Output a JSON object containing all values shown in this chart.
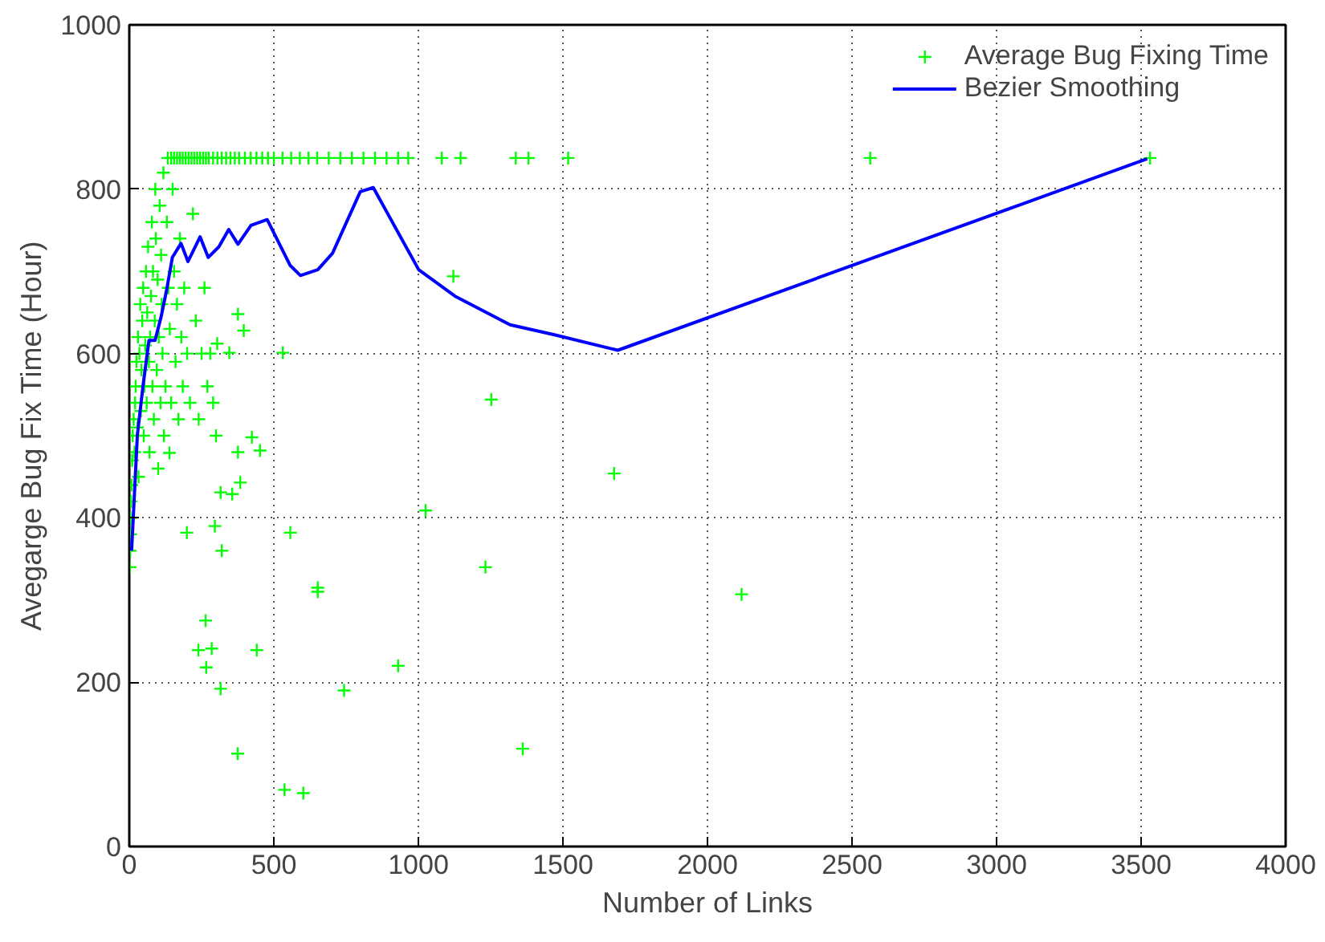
{
  "chart_data": {
    "type": "scatter",
    "xlabel": "Number of Links",
    "ylabel": "Avegarge Bug Fix Time (Hour)",
    "xlim": [
      0,
      4000
    ],
    "ylim": [
      0,
      1000
    ],
    "xticks": [
      0,
      500,
      1000,
      1500,
      2000,
      2500,
      3000,
      3500,
      4000
    ],
    "yticks": [
      0,
      200,
      400,
      600,
      800,
      1000
    ],
    "grid": true,
    "legend": "top right",
    "series": [
      {
        "name": "Average Bug Fixing Time",
        "marker": "cross",
        "color": "#00ff00",
        "x": [
          2,
          3,
          5,
          4,
          6,
          8,
          10,
          12,
          15,
          18,
          20,
          22,
          25,
          28,
          30,
          32,
          35,
          38,
          40,
          42,
          45,
          48,
          50,
          52,
          55,
          58,
          60,
          62,
          65,
          68,
          70,
          72,
          75,
          78,
          80,
          82,
          85,
          88,
          90,
          92,
          95,
          98,
          100,
          102,
          105,
          108,
          110,
          112,
          115,
          118,
          120,
          125,
          130,
          135,
          140,
          145,
          150,
          155,
          160,
          165,
          170,
          175,
          180,
          185,
          190,
          200,
          210,
          220,
          230,
          240,
          250,
          260,
          270,
          280,
          290,
          300,
          199,
          296,
          320,
          557,
          652,
          652,
          1025,
          1232,
          264,
          239,
          285,
          441,
          266,
          316,
          930,
          743,
          375,
          1361,
          537,
          602,
          1677,
          2118,
          1121,
          1252,
          531,
          376,
          396,
          304,
          346,
          424,
          452,
          376,
          384,
          316,
          356,
          139,
          133,
          145,
          155,
          165,
          175,
          185,
          195,
          205,
          215,
          225,
          235,
          245,
          255,
          265,
          275,
          290,
          305,
          320,
          335,
          350,
          365,
          380,
          400,
          420,
          440,
          460,
          480,
          500,
          530,
          560,
          590,
          620,
          650,
          690,
          730,
          770,
          810,
          850,
          890,
          930,
          965,
          1081,
          1146,
          1337,
          1381,
          1518,
          2563,
          3531
        ],
        "values": [
          340,
          360,
          380,
          400,
          420,
          440,
          470,
          500,
          520,
          480,
          540,
          560,
          590,
          510,
          620,
          450,
          600,
          660,
          530,
          580,
          640,
          680,
          500,
          560,
          610,
          700,
          540,
          650,
          730,
          590,
          480,
          620,
          670,
          760,
          560,
          700,
          520,
          640,
          800,
          740,
          580,
          690,
          460,
          620,
          780,
          540,
          720,
          660,
          600,
          820,
          500,
          560,
          760,
          680,
          630,
          540,
          800,
          700,
          590,
          660,
          520,
          740,
          620,
          560,
          680,
          600,
          540,
          770,
          640,
          520,
          600,
          680,
          560,
          600,
          540,
          500,
          382,
          390,
          360,
          382,
          315,
          310,
          409,
          340,
          275,
          239,
          241,
          239,
          218,
          192,
          220,
          190,
          113,
          119,
          69,
          65,
          454,
          307,
          694,
          544,
          601,
          648,
          628,
          612,
          601,
          498,
          482,
          480,
          443,
          431,
          429,
          479,
          838,
          838,
          838,
          838,
          838,
          838,
          838,
          838,
          838,
          838,
          838,
          838,
          838,
          838,
          838,
          838,
          838,
          838,
          838,
          838,
          838,
          838,
          838,
          838,
          838,
          838,
          838,
          838,
          838,
          838,
          838,
          838,
          838,
          838,
          838,
          838,
          838,
          838,
          838,
          838,
          838,
          838,
          838,
          838,
          838,
          838,
          838,
          838
        ]
      },
      {
        "name": "Bezier Smoothing",
        "type": "line",
        "color": "#0000ff",
        "x": [
          8,
          28,
          48,
          68,
          89,
          109,
          129,
          149,
          179,
          203,
          245,
          273,
          310,
          344,
          376,
          421,
          477,
          557,
          592,
          652,
          703,
          799,
          844,
          1001,
          1126,
          1317,
          1468,
          1690,
          3521
        ],
        "values": [
          360,
          501,
          562,
          616,
          616,
          643,
          677,
          717,
          734,
          712,
          742,
          717,
          730,
          751,
          733,
          756,
          763,
          707,
          695,
          702,
          722,
          797,
          802,
          702,
          670,
          635,
          623,
          604,
          837
        ]
      }
    ]
  }
}
